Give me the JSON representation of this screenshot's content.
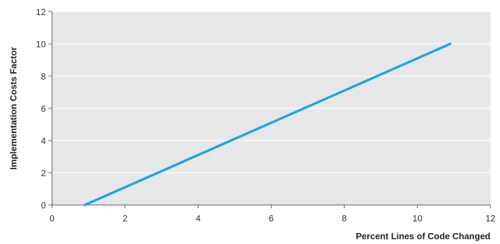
{
  "chart_data": {
    "type": "line",
    "xlabel": "Percent Lines of Code Changed",
    "ylabel": "Implementation Costs Factor",
    "xlim": [
      0,
      12
    ],
    "ylim": [
      0,
      12
    ],
    "x_ticks": [
      0,
      2,
      4,
      6,
      8,
      10,
      12
    ],
    "y_ticks": [
      0,
      2,
      4,
      6,
      8,
      10,
      12
    ],
    "grid": "horizontal",
    "legend": "none",
    "series": [
      {
        "x": [
          0.9,
          10.9
        ],
        "y": [
          0,
          10
        ],
        "color": "#1aa6e0"
      }
    ],
    "plot_background": "#e6e7e9",
    "gridline_color": "#ffffff"
  }
}
